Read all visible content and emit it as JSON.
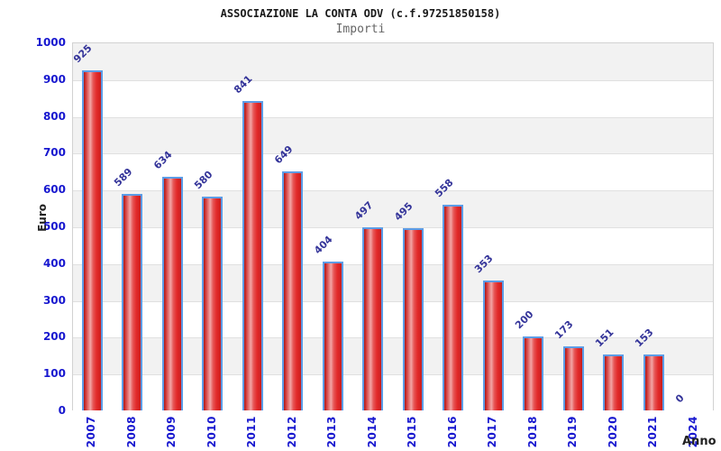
{
  "chart_data": {
    "type": "bar",
    "title": "ASSOCIAZIONE LA CONTA ODV (c.f.97251850158)",
    "subtitle": "Importi",
    "xlabel": "Anno",
    "ylabel": "Euro",
    "categories": [
      "2007",
      "2008",
      "2009",
      "2010",
      "2011",
      "2012",
      "2013",
      "2014",
      "2015",
      "2016",
      "2017",
      "2018",
      "2019",
      "2020",
      "2021",
      "2024"
    ],
    "values": [
      925,
      589,
      634,
      580,
      841,
      649,
      404,
      497,
      495,
      558,
      353,
      200,
      173,
      151,
      153,
      0
    ],
    "ylim": [
      0,
      1000
    ],
    "ytick_step": 100,
    "yticks": [
      0,
      100,
      200,
      300,
      400,
      500,
      600,
      700,
      800,
      900,
      1000
    ],
    "grid": "horizontal-bands",
    "legend_position": "none",
    "colors": {
      "bar_fill_dark": "#bf1e1e",
      "bar_fill_light": "#f2a5a5",
      "bar_border": "#5c9ce6",
      "axis_tick_label": "#1717cf",
      "value_label": "#333399",
      "band_gray": "#f2f2f2",
      "band_white": "#ffffff",
      "grid_line": "#e0e0e0",
      "plot_border": "#d2d2d2",
      "title_color": "#1a1a1a",
      "subtitle_color": "#666666",
      "axis_title_color": "#222222"
    }
  }
}
